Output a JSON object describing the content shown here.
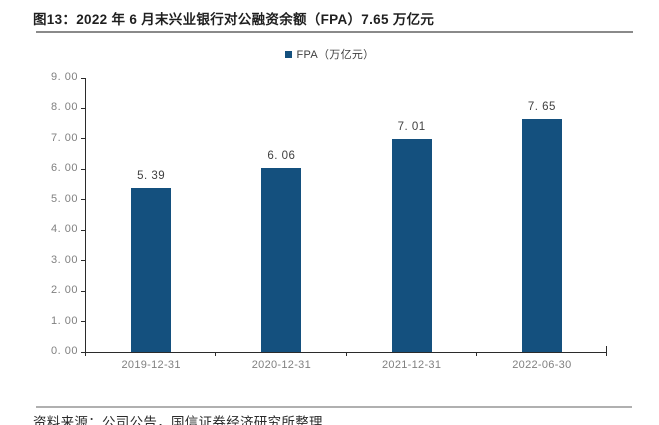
{
  "title": "图13：2022 年 6 月末兴业银行对公融资余额（FPA）7.65 万亿元",
  "source": "资料来源：公司公告，国信证券经济研究所整理",
  "colors": {
    "bar": "#14507E",
    "axis": "#2b2b2b",
    "tick_label": "#808080",
    "data_label": "#404040",
    "rule_top": "#8a8a8a",
    "rule_bottom": "#b0b0b0"
  },
  "chart_data": {
    "type": "bar",
    "title": "图13：2022 年 6 月末兴业银行对公融资余额（FPA）7.65 万亿元",
    "legend": "FPA（万亿元）",
    "legend_position": "top-center",
    "categories": [
      "2019-12-31",
      "2020-12-31",
      "2021-12-31",
      "2022-06-30"
    ],
    "values": [
      5.39,
      6.06,
      7.01,
      7.65
    ],
    "value_labels": [
      "5. 39",
      "6. 06",
      "7. 01",
      "7. 65"
    ],
    "xlabel": "",
    "ylabel": "",
    "ylim": [
      0,
      9
    ],
    "y_ticks": [
      "0. 00",
      "1. 00",
      "2. 00",
      "3. 00",
      "4. 00",
      "5. 00",
      "6. 00",
      "7. 00",
      "8. 00",
      "9. 00"
    ],
    "grid": false
  }
}
